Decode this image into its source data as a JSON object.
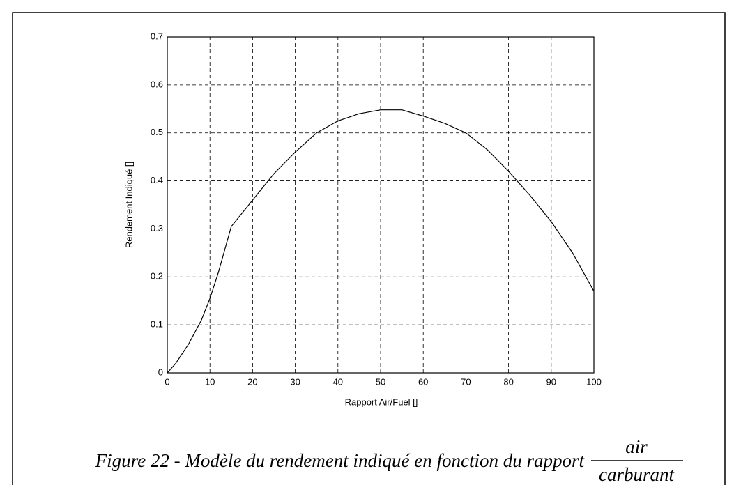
{
  "chart_data": {
    "type": "line",
    "xlabel": "Rapport Air/Fuel []",
    "ylabel": "Rendement Indiqué []",
    "x": [
      0,
      2,
      5,
      8,
      10,
      12,
      15,
      20,
      25,
      30,
      35,
      40,
      45,
      50,
      55,
      60,
      65,
      70,
      75,
      80,
      85,
      90,
      95,
      100
    ],
    "values": [
      0,
      0.02,
      0.06,
      0.11,
      0.155,
      0.21,
      0.305,
      0.36,
      0.415,
      0.46,
      0.5,
      0.525,
      0.54,
      0.548,
      0.548,
      0.535,
      0.52,
      0.5,
      0.465,
      0.42,
      0.37,
      0.315,
      0.25,
      0.17
    ],
    "color": "#000000",
    "xlim": [
      0,
      100
    ],
    "xticks": [
      0,
      10,
      20,
      30,
      40,
      50,
      60,
      70,
      80,
      90,
      100
    ],
    "ylim": [
      0,
      0.7
    ],
    "yticks": [
      0,
      0.1,
      0.2,
      0.3,
      0.4,
      0.5,
      0.6,
      0.7
    ],
    "grid": true
  },
  "caption": {
    "text": "Figure 22 - Modèle du rendement indiqué en fonction du rapport",
    "numerator": "air",
    "denominator": "carburant"
  }
}
